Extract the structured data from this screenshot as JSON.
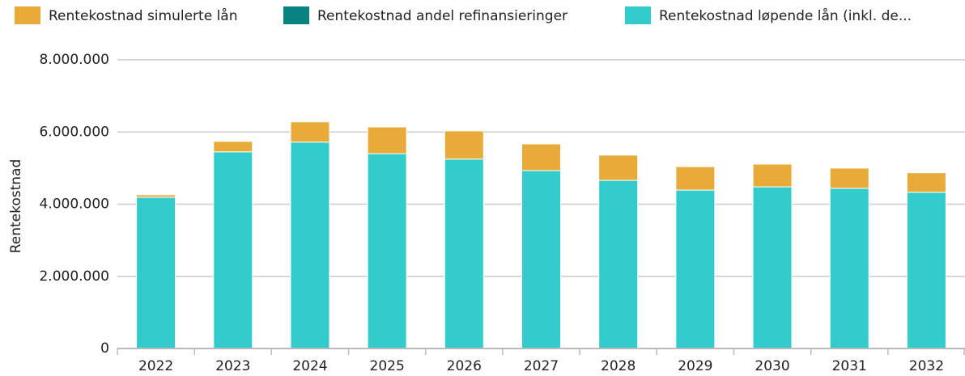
{
  "chart_data": {
    "type": "stacked_bar",
    "ylabel": "Rentekostnad",
    "categories": [
      "2022",
      "2023",
      "2024",
      "2025",
      "2026",
      "2027",
      "2028",
      "2029",
      "2030",
      "2031",
      "2032"
    ],
    "series": [
      {
        "name": "Rentekostnad simulerte lån",
        "color": "#e8ab3a",
        "values": [
          70000,
          290000,
          560000,
          740000,
          780000,
          740000,
          700000,
          650000,
          630000,
          560000,
          540000
        ]
      },
      {
        "name": "Rentekostnad andel refinansieringer",
        "color": "#08837f",
        "values": [
          0,
          0,
          0,
          0,
          0,
          0,
          0,
          0,
          0,
          0,
          0
        ]
      },
      {
        "name": "Rentekostnad løpende lån (inkl. de...",
        "color": "#33cccc",
        "values": [
          4190000,
          5450000,
          5720000,
          5400000,
          5250000,
          4930000,
          4660000,
          4390000,
          4480000,
          4440000,
          4330000
        ]
      }
    ],
    "ylim": [
      0,
      8000000
    ],
    "yticks": [
      0,
      {
        "value": 2000000,
        "label": "2.000.000"
      },
      {
        "value": 4000000,
        "label": "4.000.000"
      },
      {
        "value": 6000000,
        "label": "6.000.000"
      },
      {
        "value": 8000000,
        "label": "8.000.000"
      }
    ],
    "grid": true
  }
}
